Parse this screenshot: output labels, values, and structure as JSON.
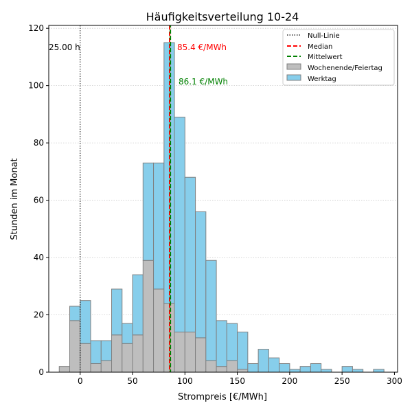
{
  "chart_data": {
    "type": "bar",
    "title": "Häufigkeitsverteilung 10-24",
    "xlabel": "Strompreis [€/MWh]",
    "ylabel": "Stunden im Monat",
    "xlim": [
      -30,
      303
    ],
    "ylim": [
      0,
      121
    ],
    "xticks": [
      0,
      50,
      100,
      150,
      200,
      250,
      300
    ],
    "yticks": [
      0,
      20,
      40,
      60,
      80,
      100,
      120
    ],
    "grid": "horizontal dotted",
    "legend_position": "top-right",
    "bin_width": 10,
    "bin_starts": [
      -20,
      -10,
      0,
      10,
      20,
      30,
      40,
      50,
      60,
      70,
      80,
      90,
      100,
      110,
      120,
      130,
      140,
      150,
      160,
      170,
      180,
      190,
      200,
      210,
      220,
      230,
      240,
      250,
      260,
      270,
      280
    ],
    "series": [
      {
        "name": "Wochenende/Feiertag",
        "color": "#bebebe",
        "values": [
          2,
          18,
          10,
          3,
          4,
          13,
          10,
          13,
          39,
          29,
          24,
          14,
          14,
          12,
          4,
          2,
          4,
          1,
          0,
          0,
          0,
          0,
          0,
          0,
          0,
          0,
          0,
          0,
          0,
          0,
          0
        ]
      },
      {
        "name": "Werktag",
        "color": "#87ceeb",
        "values": [
          0,
          5,
          15,
          8,
          7,
          16,
          7,
          21,
          34,
          44,
          91,
          75,
          54,
          44,
          35,
          16,
          13,
          13,
          3,
          8,
          5,
          3,
          1,
          2,
          3,
          1,
          0,
          2,
          1,
          0,
          1
        ]
      }
    ],
    "lines": {
      "null_line": {
        "name": "Null-Linie",
        "x": 0,
        "color": "#000000",
        "label": "25.00 h"
      },
      "median": {
        "name": "Median",
        "x": 85.4,
        "color": "#ff0000",
        "label": "85.4 €/MWh"
      },
      "mean": {
        "name": "Mittelwert",
        "x": 86.1,
        "color": "#008000",
        "label": "86.1 €/MWh"
      }
    }
  }
}
